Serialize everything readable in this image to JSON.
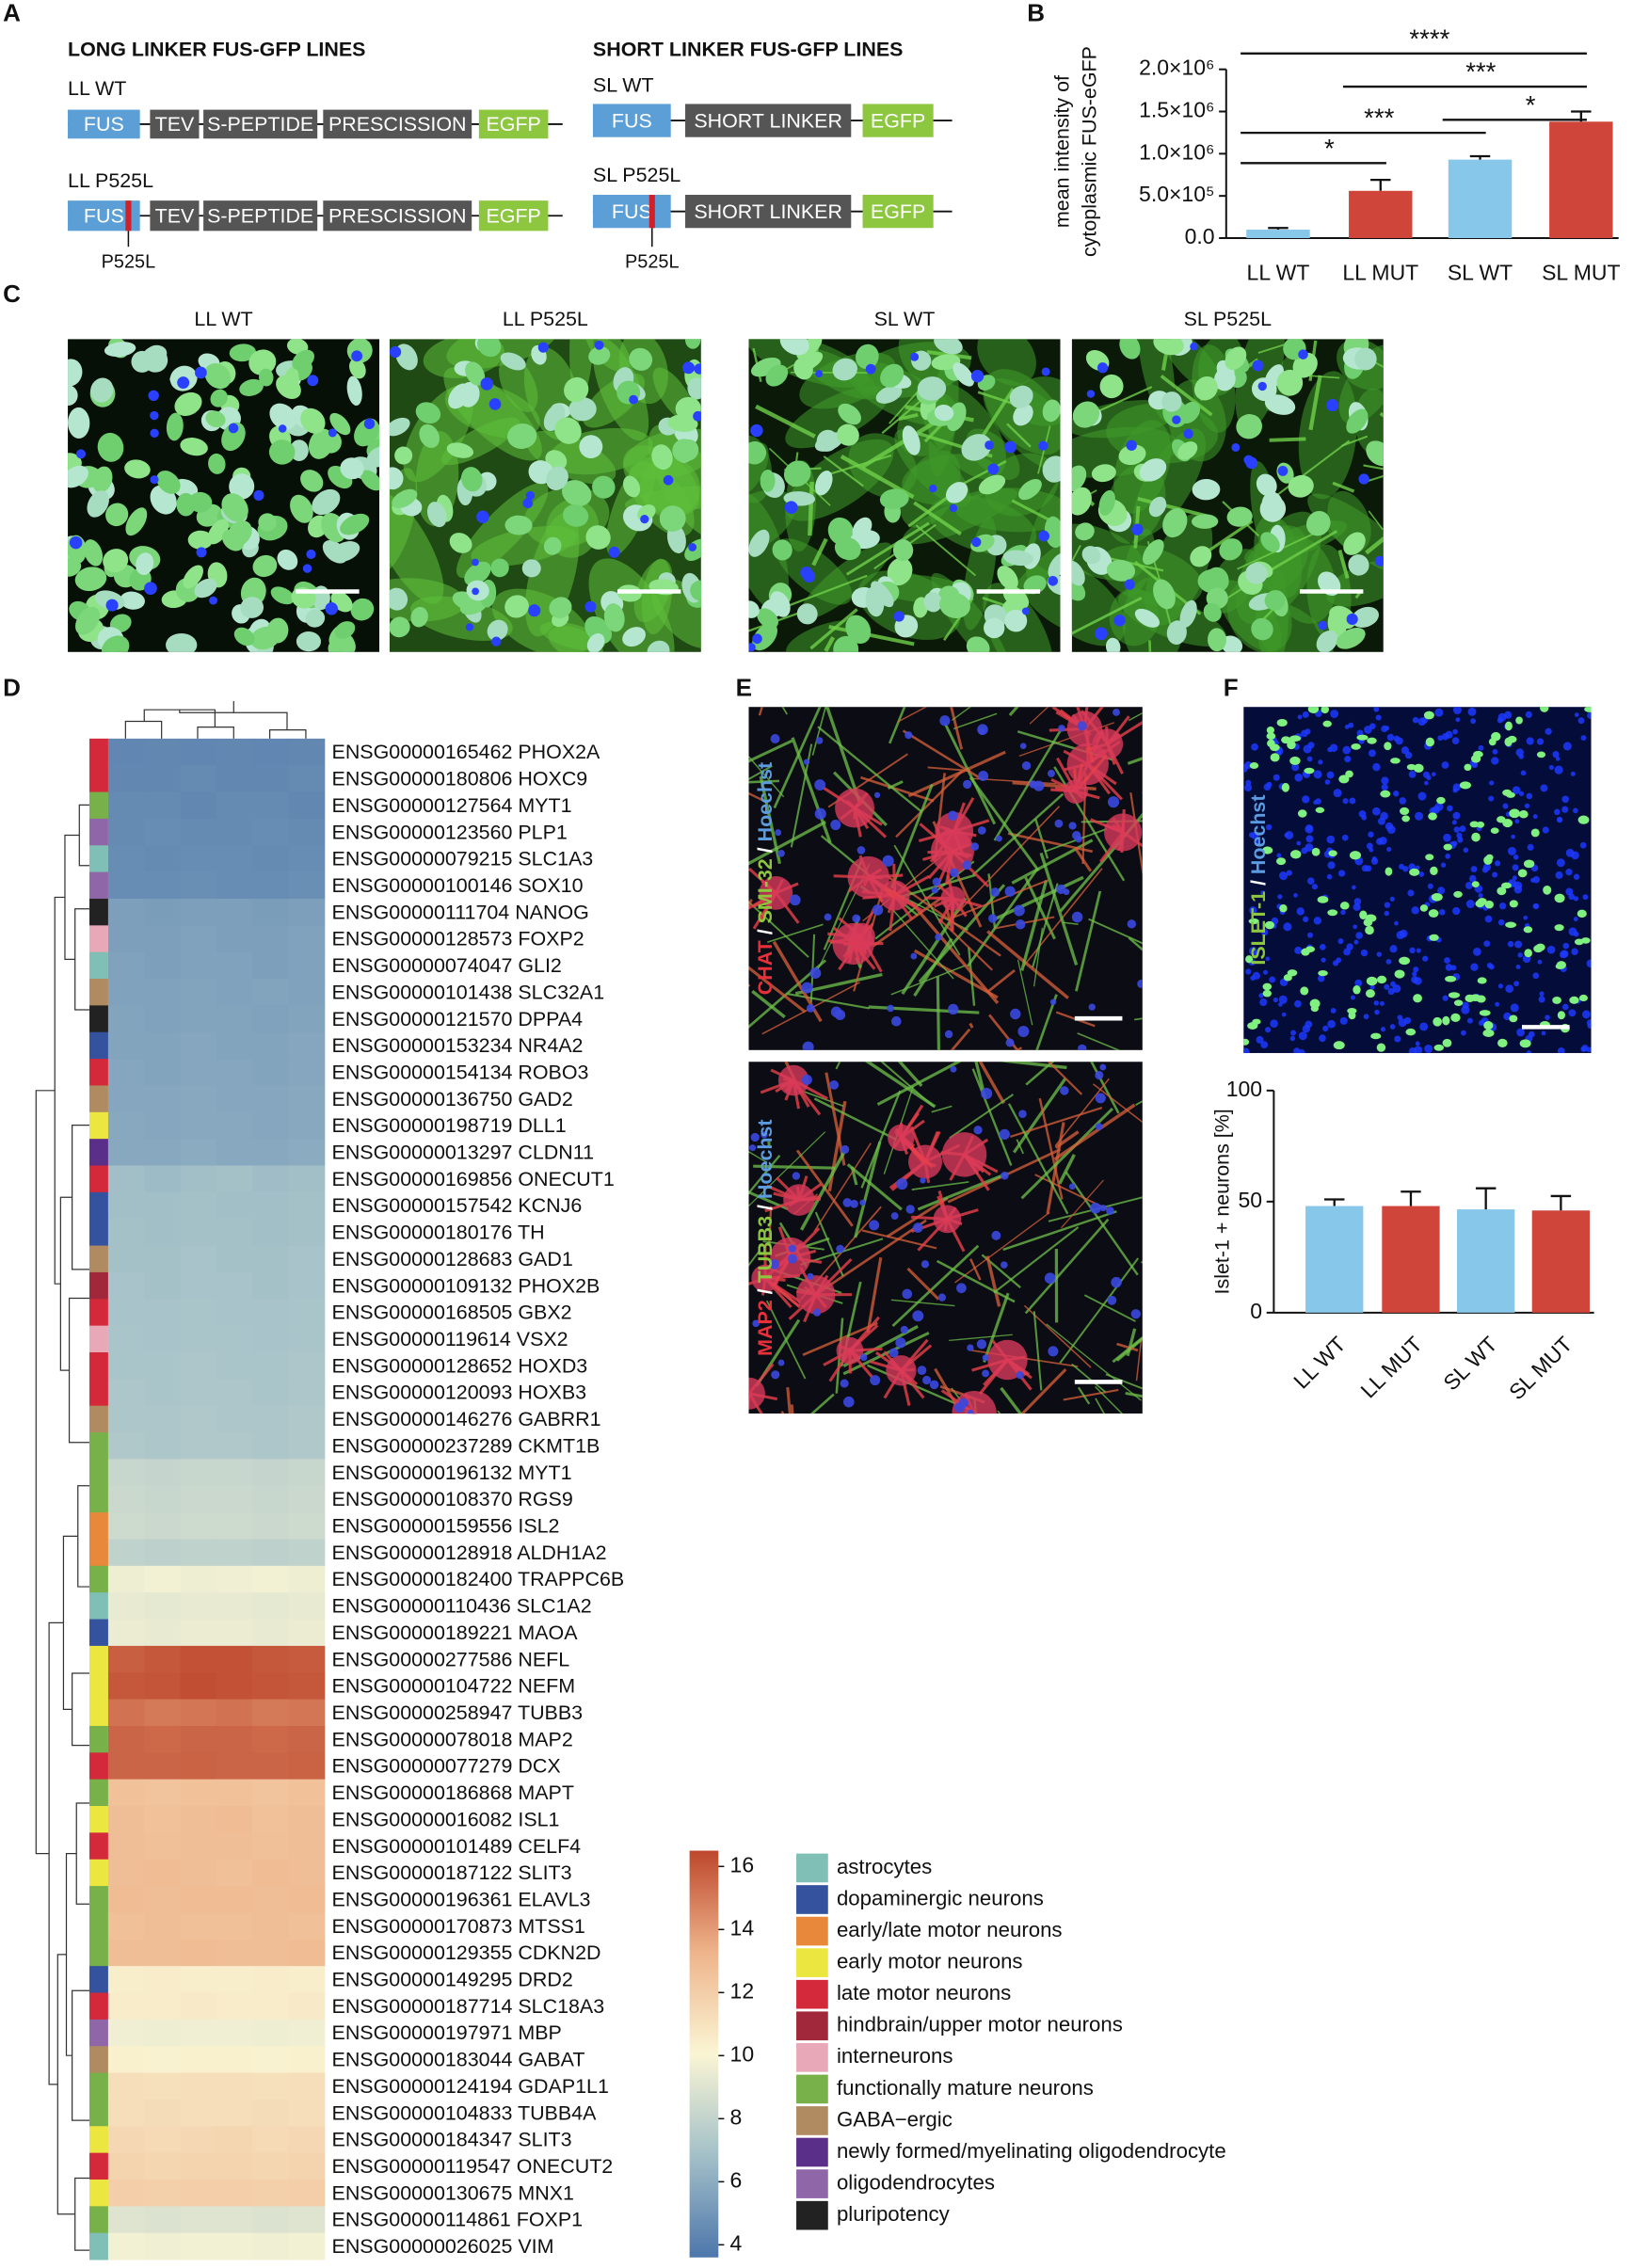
{
  "panel_labels": [
    "A",
    "B",
    "C",
    "D",
    "E",
    "F"
  ],
  "panel_a": {
    "long_title": "LONG LINKER FUS-GFP LINES",
    "short_title": "SHORT LINKER FUS-GFP LINES",
    "constructs": [
      {
        "name": "LL WT",
        "segments": [
          "FUS",
          "TEV",
          "S-PEPTIDE",
          "PRESCISSION",
          "EGFP"
        ]
      },
      {
        "name": "LL P525L",
        "segments": [
          "FUS",
          "TEV",
          "S-PEPTIDE",
          "PRESCISSION",
          "EGFP"
        ],
        "mutation": "P525L"
      },
      {
        "name": "SL WT",
        "segments": [
          "FUS",
          "SHORT LINKER",
          "EGFP"
        ]
      },
      {
        "name": "SL P525L",
        "segments": [
          "FUS",
          "SHORT LINKER",
          "EGFP"
        ],
        "mutation": "P525L"
      }
    ]
  },
  "panel_c": {
    "images": [
      "LL WT",
      "LL P525L",
      "SL WT",
      "SL P525L"
    ]
  },
  "panel_e": {
    "images": [
      {
        "label": [
          {
            "text": "CHAT",
            "color": "#e8303a"
          },
          {
            "text": " / ",
            "color": "#ffffff"
          },
          {
            "text": "SMI-32",
            "color": "#8cc63f"
          },
          {
            "text": " / ",
            "color": "#ffffff"
          },
          {
            "text": "Hoechst",
            "color": "#5b9be0"
          }
        ]
      },
      {
        "label": [
          {
            "text": "MAP2",
            "color": "#e8303a"
          },
          {
            "text": " / ",
            "color": "#ffffff"
          },
          {
            "text": "TUBB3",
            "color": "#8cc63f"
          },
          {
            "text": " / ",
            "color": "#ffffff"
          },
          {
            "text": "Hoechst",
            "color": "#5b9be0"
          }
        ]
      }
    ]
  },
  "panel_f": {
    "image": {
      "label": [
        {
          "text": "ISLET-1",
          "color": "#8cc63f"
        },
        {
          "text": " / ",
          "color": "#ffffff"
        },
        {
          "text": "Hoechst",
          "color": "#5b9be0"
        }
      ]
    }
  },
  "chart_data": [
    {
      "type": "bar",
      "ylabel": [
        "mean intensity of",
        "cytoplasmic FUS-eGFP"
      ],
      "categories": [
        "LL WT",
        "LL MUT",
        "SL WT",
        "SL MUT"
      ],
      "values": [
        100000,
        560000,
        930000,
        1380000
      ],
      "errors": [
        20000,
        130000,
        40000,
        120000
      ],
      "colors": [
        "#87c7ea",
        "#d0453a",
        "#87c7ea",
        "#d0453a"
      ],
      "ylim": [
        0,
        2000000
      ],
      "yticks": [
        {
          "value": 0,
          "label": "0.0"
        },
        {
          "value": 500000,
          "label": "5.0×10⁵"
        },
        {
          "value": 1000000,
          "label": "1.0×10⁶"
        },
        {
          "value": 1500000,
          "label": "1.5×10⁶"
        },
        {
          "value": 2000000,
          "label": "2.0×10⁶"
        }
      ],
      "significance": [
        "****",
        "***",
        "*",
        "***",
        "*"
      ]
    },
    {
      "type": "heatmap",
      "categories": [
        "ENSG00000165462 PHOX2A",
        "ENSG00000180806 HOXC9",
        "ENSG00000127564 MYT1",
        "ENSG00000123560 PLP1",
        "ENSG00000079215 SLC1A3",
        "ENSG00000100146 SOX10",
        "ENSG00000111704 NANOG",
        "ENSG00000128573 FOXP2",
        "ENSG00000074047 GLI2",
        "ENSG00000101438 SLC32A1",
        "ENSG00000121570 DPPA4",
        "ENSG00000153234 NR4A2",
        "ENSG00000154134 ROBO3",
        "ENSG00000136750 GAD2",
        "ENSG00000198719 DLL1",
        "ENSG00000013297 CLDN11",
        "ENSG00000169856 ONECUT1",
        "ENSG00000157542 KCNJ6",
        "ENSG00000180176 TH",
        "ENSG00000128683 GAD1",
        "ENSG00000109132 PHOX2B",
        "ENSG00000168505 GBX2",
        "ENSG00000119614 VSX2",
        "ENSG00000128652 HOXD3",
        "ENSG00000120093 HOXB3",
        "ENSG00000146276 GABRR1",
        "ENSG00000237289 CKMT1B",
        "ENSG00000196132 MYT1",
        "ENSG00000108370 RGS9",
        "ENSG00000159556 ISL2",
        "ENSG00000128918 ALDH1A2",
        "ENSG00000182400 TRAPPC6B",
        "ENSG00000110436 SLC1A2",
        "ENSG00000189221 MAOA",
        "ENSG00000277586 NEFL",
        "ENSG00000104722 NEFM",
        "ENSG00000258947 TUBB3",
        "ENSG00000078018 MAP2",
        "ENSG00000077279 DCX",
        "ENSG00000186868 MAPT",
        "ENSG00000016082 ISL1",
        "ENSG00000101489 CELF4",
        "ENSG00000187122 SLIT3",
        "ENSG00000196361 ELAVL3",
        "ENSG00000170873 MTSS1",
        "ENSG00000129355 CDKN2D",
        "ENSG00000149295 DRD2",
        "ENSG00000187714 SLC18A3",
        "ENSG00000197971 MBP",
        "ENSG00000183044 GABAT",
        "ENSG00000124194 GDAP1L1",
        "ENSG00000104833 TUBB4A",
        "ENSG00000184347 SLIT3",
        "ENSG00000119547 ONECUT2",
        "ENSG00000130675 MNX1",
        "ENSG00000114861 FOXP1",
        "ENSG00000026025 VIM"
      ],
      "cell_types": [
        "late motor neurons",
        "late motor neurons",
        "functionally mature neurons",
        "oligodendrocytes",
        "astrocytes",
        "oligodendrocytes",
        "pluripotency",
        "interneurons",
        "astrocytes",
        "GABA−ergic",
        "pluripotency",
        "dopaminergic neurons",
        "late motor neurons",
        "GABA−ergic",
        "early motor neurons",
        "newly formed/myelinating oligodendrocyte",
        "late motor neurons",
        "dopaminergic neurons",
        "dopaminergic neurons",
        "GABA−ergic",
        "hindbrain/upper motor neurons",
        "late motor neurons",
        "interneurons",
        "late motor neurons",
        "late motor neurons",
        "GABA−ergic",
        "functionally mature neurons",
        "functionally mature neurons",
        "functionally mature neurons",
        "early/late motor neurons",
        "early/late motor neurons",
        "functionally mature neurons",
        "astrocytes",
        "dopaminergic neurons",
        "early motor neurons",
        "early motor neurons",
        "early motor neurons",
        "functionally mature neurons",
        "late motor neurons",
        "functionally mature neurons",
        "early motor neurons",
        "late motor neurons",
        "early motor neurons",
        "functionally mature neurons",
        "functionally mature neurons",
        "functionally mature neurons",
        "dopaminergic neurons",
        "late motor neurons",
        "oligodendrocytes",
        "GABA−ergic",
        "functionally mature neurons",
        "functionally mature neurons",
        "early motor neurons",
        "late motor neurons",
        "early motor neurons",
        "functionally mature neurons",
        "astrocytes"
      ],
      "values": [
        [
          4.3,
          4.4,
          4.3,
          4.4,
          4.3,
          4.4
        ],
        [
          4.4,
          4.4,
          4.5,
          4.4,
          4.4,
          4.5
        ],
        [
          4.5,
          4.5,
          4.4,
          4.5,
          4.5,
          4.4
        ],
        [
          4.5,
          4.6,
          4.5,
          4.5,
          4.6,
          4.5
        ],
        [
          4.6,
          4.5,
          4.6,
          4.6,
          4.5,
          4.6
        ],
        [
          4.6,
          4.6,
          4.7,
          4.6,
          4.6,
          4.7
        ],
        [
          5.4,
          5.3,
          5.4,
          5.4,
          5.3,
          5.4
        ],
        [
          5.4,
          5.4,
          5.5,
          5.4,
          5.4,
          5.5
        ],
        [
          5.5,
          5.4,
          5.5,
          5.5,
          5.4,
          5.5
        ],
        [
          5.5,
          5.5,
          5.6,
          5.5,
          5.6,
          5.5
        ],
        [
          5.6,
          5.5,
          5.6,
          5.6,
          5.5,
          5.6
        ],
        [
          5.6,
          5.6,
          5.7,
          5.6,
          5.6,
          5.7
        ],
        [
          5.7,
          5.6,
          5.7,
          5.7,
          5.6,
          5.7
        ],
        [
          5.7,
          5.7,
          5.8,
          5.7,
          5.7,
          5.8
        ],
        [
          5.8,
          5.7,
          5.8,
          5.8,
          5.7,
          5.8
        ],
        [
          5.8,
          5.8,
          5.9,
          5.8,
          5.8,
          5.9
        ],
        [
          6.8,
          6.6,
          6.8,
          6.9,
          6.7,
          6.8
        ],
        [
          6.8,
          6.8,
          6.9,
          6.8,
          6.8,
          6.9
        ],
        [
          6.9,
          6.8,
          6.9,
          6.9,
          6.8,
          6.9
        ],
        [
          6.9,
          6.9,
          7.0,
          6.9,
          6.9,
          7.0
        ],
        [
          7.0,
          6.9,
          7.0,
          7.0,
          6.9,
          7.0
        ],
        [
          7.0,
          7.0,
          7.1,
          7.0,
          7.0,
          7.1
        ],
        [
          7.1,
          7.0,
          7.1,
          7.1,
          7.0,
          7.1
        ],
        [
          7.1,
          7.1,
          7.2,
          7.1,
          7.1,
          7.2
        ],
        [
          7.2,
          7.1,
          7.2,
          7.2,
          7.1,
          7.2
        ],
        [
          7.2,
          7.2,
          7.3,
          7.2,
          7.2,
          7.3
        ],
        [
          7.3,
          7.2,
          7.3,
          7.3,
          7.2,
          7.3
        ],
        [
          8.2,
          8.1,
          8.2,
          8.2,
          8.1,
          8.2
        ],
        [
          8.3,
          8.2,
          8.3,
          8.3,
          8.2,
          8.3
        ],
        [
          8.4,
          8.3,
          8.4,
          8.4,
          8.3,
          8.4
        ],
        [
          7.9,
          7.8,
          7.9,
          7.9,
          7.8,
          7.9
        ],
        [
          9.6,
          9.8,
          9.6,
          9.7,
          9.8,
          9.6
        ],
        [
          9.4,
          9.3,
          9.4,
          9.4,
          9.3,
          9.4
        ],
        [
          9.5,
          9.4,
          9.5,
          9.5,
          9.4,
          9.5
        ],
        [
          15.8,
          16.0,
          16.2,
          16.2,
          16.0,
          15.9
        ],
        [
          16.0,
          16.1,
          16.3,
          16.2,
          16.1,
          16.0
        ],
        [
          15.2,
          15.0,
          15.1,
          15.2,
          15.0,
          15.1
        ],
        [
          15.6,
          15.5,
          15.6,
          15.6,
          15.5,
          15.6
        ],
        [
          15.6,
          15.6,
          15.7,
          15.6,
          15.6,
          15.7
        ],
        [
          12.6,
          12.5,
          12.6,
          12.6,
          12.5,
          12.6
        ],
        [
          12.8,
          12.6,
          12.8,
          12.9,
          12.6,
          12.8
        ],
        [
          12.8,
          12.7,
          12.8,
          12.8,
          12.7,
          12.8
        ],
        [
          12.8,
          12.9,
          12.8,
          12.7,
          12.9,
          12.8
        ],
        [
          12.9,
          12.8,
          12.9,
          12.9,
          12.8,
          12.9
        ],
        [
          12.7,
          12.8,
          12.7,
          12.7,
          12.8,
          12.7
        ],
        [
          12.8,
          12.8,
          12.9,
          12.8,
          12.8,
          12.9
        ],
        [
          10.4,
          10.5,
          10.4,
          10.4,
          10.5,
          10.4
        ],
        [
          10.5,
          10.5,
          10.6,
          10.5,
          10.5,
          10.6
        ],
        [
          9.7,
          9.6,
          9.7,
          9.7,
          9.6,
          9.7
        ],
        [
          10.3,
          10.2,
          10.3,
          10.3,
          10.2,
          10.3
        ],
        [
          11.2,
          11.1,
          11.2,
          11.2,
          11.1,
          11.2
        ],
        [
          11.2,
          11.3,
          11.2,
          11.2,
          11.3,
          11.2
        ],
        [
          11.5,
          11.4,
          11.5,
          11.6,
          11.4,
          11.5
        ],
        [
          11.7,
          11.6,
          11.7,
          11.7,
          11.6,
          11.7
        ],
        [
          12.0,
          11.9,
          12.0,
          12.0,
          11.9,
          12.0
        ],
        [
          9.0,
          8.9,
          9.0,
          9.0,
          8.9,
          9.0
        ],
        [
          9.8,
          9.7,
          9.8,
          9.8,
          9.7,
          9.8
        ]
      ],
      "zlim": [
        3.6,
        16.5
      ],
      "zticks": [
        4,
        6,
        8,
        10,
        12,
        14,
        16
      ],
      "colors": [
        "#4d76ab",
        "#a3c0c8",
        "#faf5d4",
        "#eeb48b",
        "#be472c"
      ],
      "legend": [
        {
          "name": "astrocytes",
          "color": "#7fbfb5"
        },
        {
          "name": "dopaminergic neurons",
          "color": "#34529e"
        },
        {
          "name": "early/late motor neurons",
          "color": "#e8883a"
        },
        {
          "name": "early motor neurons",
          "color": "#ebe640"
        },
        {
          "name": "late motor neurons",
          "color": "#d4293a"
        },
        {
          "name": "hindbrain/upper motor neurons",
          "color": "#a1283a"
        },
        {
          "name": "interneurons",
          "color": "#e8a8b8"
        },
        {
          "name": "functionally mature neurons",
          "color": "#78b04a"
        },
        {
          "name": "GABA−ergic",
          "color": "#b08a60"
        },
        {
          "name": "newly formed/myelinating oligodendrocyte",
          "color": "#5a2f8a"
        },
        {
          "name": "oligodendrocytes",
          "color": "#8f66a8"
        },
        {
          "name": "pluripotency",
          "color": "#222222"
        }
      ]
    },
    {
      "type": "bar",
      "ylabel": "Islet-1 + neurons [%]",
      "categories": [
        "LL WT",
        "LL MUT",
        "SL WT",
        "SL MUT"
      ],
      "values": [
        48,
        48,
        46.5,
        46
      ],
      "errors": [
        3,
        6.5,
        9.5,
        6.5
      ],
      "colors": [
        "#87c7ea",
        "#d0453a",
        "#87c7ea",
        "#d0453a"
      ],
      "ylim": [
        0,
        100
      ],
      "yticks": [
        0,
        50,
        100
      ]
    }
  ]
}
